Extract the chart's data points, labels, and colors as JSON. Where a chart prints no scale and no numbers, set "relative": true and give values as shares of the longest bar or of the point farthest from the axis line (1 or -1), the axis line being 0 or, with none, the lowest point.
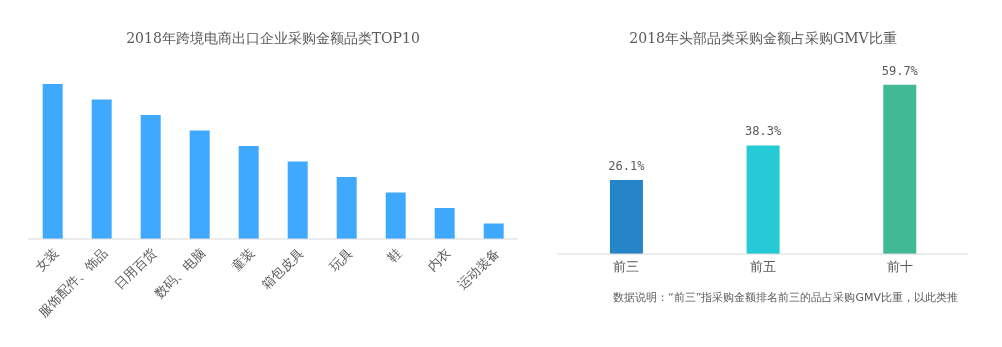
{
  "chart_data": [
    {
      "type": "bar",
      "title": "2018年跨境电商出口企业采购金额品类TOP10",
      "relative": true,
      "categories": [
        "女装",
        "服饰配件、饰品",
        "日用百货",
        "数码、电脑",
        "童装",
        "箱包皮具",
        "玩具",
        "鞋",
        "内衣",
        "运动装备"
      ],
      "values": [
        1,
        0.9,
        0.8,
        0.7,
        0.6,
        0.5,
        0.4,
        0.3,
        0.2,
        0.1
      ],
      "color": "#3fa9ff"
    },
    {
      "type": "bar",
      "title": "2018年头部品类采购金额占采购GMV比重",
      "categories": [
        "前三",
        "前五",
        "前十"
      ],
      "values": [
        26.1,
        38.3,
        59.7
      ],
      "colors": [
        "#2585c8",
        "#25cad6",
        "#41b995"
      ],
      "value_labels": [
        "26.1%",
        "38.3%",
        "59.7%"
      ],
      "annotations": [
        "数据说明：“前三”指采购金额排名前三的品占采购GMV比重，以此类推"
      ]
    }
  ]
}
